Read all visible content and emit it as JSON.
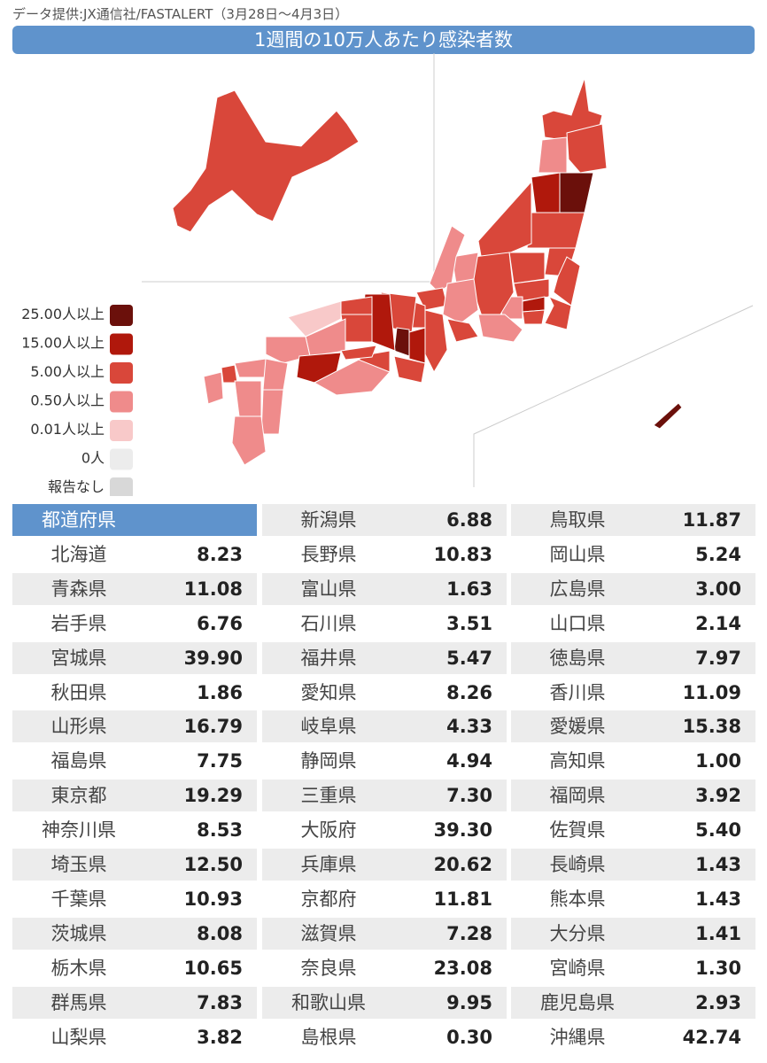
{
  "source": "データ提供:JX通信社/FASTALERT（3月28日～4月3日）",
  "title": "1週間の10万人あたり感染者数",
  "legend": [
    {
      "label": "25.00人以上",
      "color": "#6b100b"
    },
    {
      "label": "15.00人以上",
      "color": "#b0180c"
    },
    {
      "label": "5.00人以上",
      "color": "#d9473a"
    },
    {
      "label": "0.50人以上",
      "color": "#ef8b8b"
    },
    {
      "label": "0.01人以上",
      "color": "#f8c9c9"
    },
    {
      "label": "0人",
      "color": "#ececec"
    },
    {
      "label": "報告なし",
      "color": "#d8d8d8"
    }
  ],
  "table": {
    "header": "都道府県",
    "columns": [
      {
        "rows": [
          {
            "name": "北海道",
            "value": "8.23"
          },
          {
            "name": "青森県",
            "value": "11.08"
          },
          {
            "name": "岩手県",
            "value": "6.76"
          },
          {
            "name": "宮城県",
            "value": "39.90"
          },
          {
            "name": "秋田県",
            "value": "1.86"
          },
          {
            "name": "山形県",
            "value": "16.79"
          },
          {
            "name": "福島県",
            "value": "7.75"
          },
          {
            "name": "東京都",
            "value": "19.29"
          },
          {
            "name": "神奈川県",
            "value": "8.53"
          },
          {
            "name": "埼玉県",
            "value": "12.50"
          },
          {
            "name": "千葉県",
            "value": "10.93"
          },
          {
            "name": "茨城県",
            "value": "8.08"
          },
          {
            "name": "栃木県",
            "value": "10.65"
          },
          {
            "name": "群馬県",
            "value": "7.83"
          },
          {
            "name": "山梨県",
            "value": "3.82"
          }
        ]
      },
      {
        "rows": [
          {
            "name": "新潟県",
            "value": "6.88"
          },
          {
            "name": "長野県",
            "value": "10.83"
          },
          {
            "name": "富山県",
            "value": "1.63"
          },
          {
            "name": "石川県",
            "value": "3.51"
          },
          {
            "name": "福井県",
            "value": "5.47"
          },
          {
            "name": "愛知県",
            "value": "8.26"
          },
          {
            "name": "岐阜県",
            "value": "4.33"
          },
          {
            "name": "静岡県",
            "value": "4.94"
          },
          {
            "name": "三重県",
            "value": "7.30"
          },
          {
            "name": "大阪府",
            "value": "39.30"
          },
          {
            "name": "兵庫県",
            "value": "20.62"
          },
          {
            "name": "京都府",
            "value": "11.81"
          },
          {
            "name": "滋賀県",
            "value": "7.28"
          },
          {
            "name": "奈良県",
            "value": "23.08"
          },
          {
            "name": "和歌山県",
            "value": "9.95"
          },
          {
            "name": "島根県",
            "value": "0.30"
          }
        ]
      },
      {
        "rows": [
          {
            "name": "鳥取県",
            "value": "11.87"
          },
          {
            "name": "岡山県",
            "value": "5.24"
          },
          {
            "name": "広島県",
            "value": "3.00"
          },
          {
            "name": "山口県",
            "value": "2.14"
          },
          {
            "name": "徳島県",
            "value": "7.97"
          },
          {
            "name": "香川県",
            "value": "11.09"
          },
          {
            "name": "愛媛県",
            "value": "15.38"
          },
          {
            "name": "高知県",
            "value": "1.00"
          },
          {
            "name": "福岡県",
            "value": "3.92"
          },
          {
            "name": "佐賀県",
            "value": "5.40"
          },
          {
            "name": "長崎県",
            "value": "1.43"
          },
          {
            "name": "熊本県",
            "value": "1.43"
          },
          {
            "name": "大分県",
            "value": "1.41"
          },
          {
            "name": "宮崎県",
            "value": "1.30"
          },
          {
            "name": "鹿児島県",
            "value": "2.93"
          },
          {
            "name": "沖縄県",
            "value": "42.74"
          }
        ]
      }
    ]
  }
}
